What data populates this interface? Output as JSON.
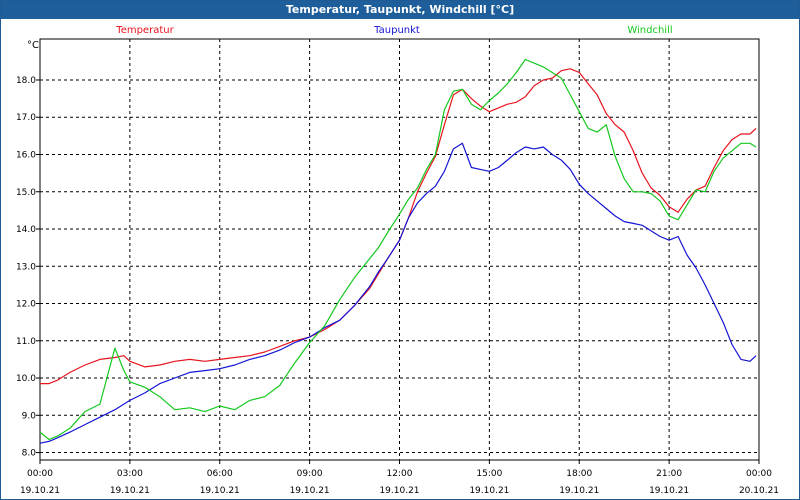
{
  "window": {
    "title": "Temperatur, Taupunkt, Windchill [°C]"
  },
  "chart_data": {
    "type": "line",
    "title": "Temperatur, Taupunkt, Windchill [°C]",
    "ylabel": "°C",
    "ylim": [
      7.8,
      19.1
    ],
    "xlim": [
      0,
      24
    ],
    "grid": true,
    "y_ticks": [
      "8.0",
      "9.0",
      "10.0",
      "11.0",
      "12.0",
      "13.0",
      "14.0",
      "15.0",
      "16.0",
      "17.0",
      "18.0"
    ],
    "x_ticks": [
      {
        "x": 0,
        "time": "00:00",
        "date": "19.10.21"
      },
      {
        "x": 3,
        "time": "03:00",
        "date": "19.10.21"
      },
      {
        "x": 6,
        "time": "06:00",
        "date": "19.10.21"
      },
      {
        "x": 9,
        "time": "09:00",
        "date": "19.10.21"
      },
      {
        "x": 12,
        "time": "12:00",
        "date": "19.10.21"
      },
      {
        "x": 15,
        "time": "15:00",
        "date": "19.10.21"
      },
      {
        "x": 18,
        "time": "18:00",
        "date": "19.10.21"
      },
      {
        "x": 21,
        "time": "21:00",
        "date": "19.10.21"
      },
      {
        "x": 24,
        "time": "00:00",
        "date": "20.10.21"
      }
    ],
    "series": [
      {
        "name": "Temperatur",
        "color": "#e8141e",
        "x": [
          0,
          0.3,
          0.6,
          1,
          1.5,
          2,
          2.5,
          2.8,
          3,
          3.5,
          4,
          4.5,
          5,
          5.5,
          6,
          6.5,
          7,
          7.5,
          8,
          8.5,
          9,
          9.5,
          10,
          10.5,
          11,
          11.3,
          11.6,
          12,
          12.3,
          12.6,
          12.9,
          13.2,
          13.5,
          13.8,
          14.1,
          14.4,
          14.7,
          15,
          15.3,
          15.6,
          15.9,
          16.2,
          16.5,
          16.8,
          17.1,
          17.4,
          17.7,
          18,
          18.3,
          18.6,
          18.9,
          19.2,
          19.5,
          19.8,
          20.1,
          20.4,
          20.7,
          21,
          21.3,
          21.6,
          21.9,
          22.2,
          22.5,
          22.8,
          23.1,
          23.4,
          23.7,
          23.9
        ],
        "values": [
          9.85,
          9.85,
          9.95,
          10.15,
          10.35,
          10.5,
          10.55,
          10.6,
          10.45,
          10.3,
          10.35,
          10.45,
          10.5,
          10.45,
          10.5,
          10.55,
          10.6,
          10.7,
          10.85,
          11.0,
          11.1,
          11.3,
          11.55,
          11.95,
          12.4,
          12.8,
          13.2,
          13.7,
          14.3,
          15.0,
          15.5,
          15.95,
          16.8,
          17.6,
          17.75,
          17.5,
          17.3,
          17.15,
          17.25,
          17.35,
          17.4,
          17.55,
          17.85,
          18.0,
          18.05,
          18.25,
          18.3,
          18.2,
          17.9,
          17.6,
          17.1,
          16.8,
          16.6,
          16.1,
          15.5,
          15.1,
          14.9,
          14.6,
          14.45,
          14.8,
          15.05,
          15.15,
          15.65,
          16.1,
          16.4,
          16.55,
          16.55,
          16.7
        ]
      },
      {
        "name": "Taupunkt",
        "color": "#1414d4",
        "x": [
          0,
          0.3,
          0.6,
          1,
          1.5,
          2,
          2.5,
          2.8,
          3,
          3.5,
          4,
          4.5,
          5,
          5.5,
          6,
          6.5,
          7,
          7.5,
          8,
          8.5,
          9,
          9.5,
          10,
          10.5,
          11,
          11.3,
          11.6,
          12,
          12.3,
          12.6,
          12.9,
          13.2,
          13.5,
          13.8,
          14.1,
          14.4,
          14.7,
          15,
          15.3,
          15.6,
          15.9,
          16.2,
          16.5,
          16.8,
          17.1,
          17.4,
          17.7,
          18,
          18.3,
          18.6,
          18.9,
          19.2,
          19.5,
          19.8,
          20.1,
          20.4,
          20.7,
          21,
          21.3,
          21.6,
          21.9,
          22.2,
          22.5,
          22.8,
          23.1,
          23.4,
          23.7,
          23.9
        ],
        "values": [
          8.25,
          8.3,
          8.4,
          8.55,
          8.75,
          8.95,
          9.15,
          9.3,
          9.4,
          9.6,
          9.85,
          10.0,
          10.15,
          10.2,
          10.25,
          10.35,
          10.5,
          10.6,
          10.75,
          10.95,
          11.1,
          11.35,
          11.55,
          11.95,
          12.45,
          12.85,
          13.2,
          13.7,
          14.3,
          14.7,
          14.95,
          15.15,
          15.55,
          16.15,
          16.3,
          15.65,
          15.6,
          15.55,
          15.65,
          15.85,
          16.05,
          16.2,
          16.15,
          16.2,
          16.0,
          15.85,
          15.6,
          15.2,
          14.95,
          14.75,
          14.55,
          14.35,
          14.2,
          14.15,
          14.1,
          13.95,
          13.8,
          13.7,
          13.8,
          13.3,
          12.95,
          12.5,
          12.0,
          11.5,
          10.9,
          10.5,
          10.45,
          10.6
        ]
      },
      {
        "name": "Windchill",
        "color": "#14c81e",
        "x": [
          0,
          0.3,
          0.6,
          1,
          1.5,
          2,
          2.5,
          2.8,
          3,
          3.5,
          4,
          4.5,
          5,
          5.5,
          6,
          6.5,
          7,
          7.5,
          8,
          8.5,
          9,
          9.5,
          10,
          10.5,
          11,
          11.3,
          11.6,
          12,
          12.3,
          12.6,
          12.9,
          13.2,
          13.5,
          13.8,
          14.1,
          14.4,
          14.7,
          15,
          15.3,
          15.6,
          15.9,
          16.2,
          16.5,
          16.8,
          17.1,
          17.4,
          17.7,
          18,
          18.3,
          18.6,
          18.9,
          19.2,
          19.5,
          19.8,
          20.1,
          20.4,
          20.7,
          21,
          21.3,
          21.6,
          21.9,
          22.2,
          22.5,
          22.8,
          23.1,
          23.4,
          23.7,
          23.9
        ],
        "values": [
          8.55,
          8.35,
          8.45,
          8.65,
          9.1,
          9.3,
          10.8,
          10.2,
          9.9,
          9.75,
          9.5,
          9.15,
          9.2,
          9.1,
          9.25,
          9.15,
          9.4,
          9.5,
          9.8,
          10.4,
          10.95,
          11.4,
          12.1,
          12.7,
          13.2,
          13.5,
          13.9,
          14.4,
          14.8,
          15.1,
          15.6,
          16.0,
          17.2,
          17.7,
          17.75,
          17.35,
          17.2,
          17.45,
          17.65,
          17.9,
          18.2,
          18.55,
          18.45,
          18.35,
          18.2,
          18.05,
          17.6,
          17.15,
          16.7,
          16.6,
          16.8,
          15.95,
          15.35,
          15.0,
          15.0,
          14.95,
          14.75,
          14.35,
          14.25,
          14.65,
          15.05,
          15.0,
          15.55,
          15.9,
          16.1,
          16.3,
          16.3,
          16.2
        ]
      }
    ]
  }
}
